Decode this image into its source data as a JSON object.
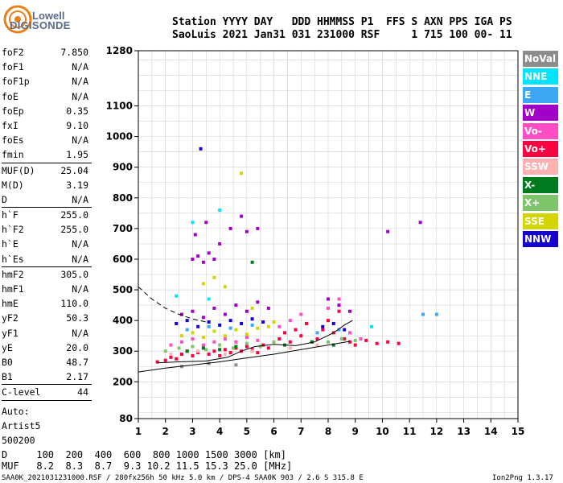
{
  "logo": {
    "line1": "Lowell",
    "line2": "DIGISONDE"
  },
  "header": {
    "line1": "Station YYYY DAY   DDD HHMMSS P1  FFS S AXN PPS IGA PS",
    "line2": "SaoLuis 2021 Jan31 031 231000 RSF     1 715 100 00- 11"
  },
  "params": [
    {
      "group": [
        {
          "k": "foF2",
          "v": "7.850"
        },
        {
          "k": "foF1",
          "v": "N/A"
        },
        {
          "k": "foF1p",
          "v": "N/A"
        },
        {
          "k": "foE",
          "v": "N/A"
        },
        {
          "k": "foEp",
          "v": "0.35"
        },
        {
          "k": "fxI",
          "v": "9.10"
        },
        {
          "k": "foEs",
          "v": "N/A"
        },
        {
          "k": "fmin",
          "v": "1.95"
        }
      ]
    },
    {
      "group": [
        {
          "k": "MUF(D)",
          "v": "25.04"
        },
        {
          "k": "M(D)",
          "v": "3.19"
        },
        {
          "k": "D",
          "v": "N/A"
        }
      ]
    },
    {
      "group": [
        {
          "k": "h`F",
          "v": "255.0"
        },
        {
          "k": "h`F2",
          "v": "255.0"
        },
        {
          "k": "h`E",
          "v": "N/A"
        },
        {
          "k": "h`Es",
          "v": "N/A"
        }
      ]
    },
    {
      "group": [
        {
          "k": "hmF2",
          "v": "305.0"
        },
        {
          "k": "hmF1",
          "v": "N/A"
        },
        {
          "k": "hmE",
          "v": "110.0"
        },
        {
          "k": "yF2",
          "v": "50.3"
        },
        {
          "k": "yF1",
          "v": "N/A"
        },
        {
          "k": "yE",
          "v": "20.0"
        },
        {
          "k": "B0",
          "v": "48.7"
        },
        {
          "k": "B1",
          "v": "2.17"
        }
      ]
    },
    {
      "group": [
        {
          "k": "C-level",
          "v": "44"
        }
      ]
    }
  ],
  "auto": {
    "line1": "Auto:",
    "line2": "Artist5",
    "line3": "500200"
  },
  "legend": [
    {
      "label": "NoVal",
      "bg": "#8c8c8c",
      "fg": "#ffffff"
    },
    {
      "label": "NNE",
      "bg": "#00e5ff",
      "fg": "#ffffff"
    },
    {
      "label": "E",
      "bg": "#3ba7f5",
      "fg": "#ffffff"
    },
    {
      "label": "W",
      "bg": "#a000c8",
      "fg": "#ffffff"
    },
    {
      "label": "Vo-",
      "bg": "#ff4dc4",
      "fg": "#ffffff"
    },
    {
      "label": "Vo+",
      "bg": "#ff0040",
      "fg": "#ffffff"
    },
    {
      "label": "SSW",
      "bg": "#ffb0b0",
      "fg": "#ffffff"
    },
    {
      "label": "X-",
      "bg": "#007a1e",
      "fg": "#ffffff"
    },
    {
      "label": "X+",
      "bg": "#7ec46a",
      "fg": "#ffffff"
    },
    {
      "label": "SSE",
      "bg": "#d4d400",
      "fg": "#ffffff"
    },
    {
      "label": "NNW",
      "bg": "#1400d2",
      "fg": "#ffffff"
    }
  ],
  "footer": {
    "line1": "D     100  200  400  600  800 1000 1500 3000 [km]",
    "line2": "MUF   8.2  8.3  8.7  9.3 10.2 11.5 15.3 25.0 [MHz]",
    "bottom_left": "SAA0K_2021031231000.RSF / 280fx256h 50 kHz 5.0 km / DPS-4 SAA0K 903 / 2.6 S 315.8 E",
    "bottom_right": "Ion2Png 1.3.17"
  },
  "chart_data": {
    "type": "scatter",
    "title": "",
    "xlabel": "",
    "ylabel": "",
    "xlim": [
      1,
      15
    ],
    "ylim": [
      80,
      1280
    ],
    "x_ticks": [
      1,
      2,
      3,
      4,
      5,
      6,
      7,
      8,
      9,
      10,
      11,
      12,
      13,
      14,
      15
    ],
    "y_ticks": [
      80,
      200,
      300,
      400,
      500,
      600,
      700,
      800,
      900,
      1000,
      1100,
      1280
    ],
    "grid": true,
    "legend_placement": "right",
    "series": [
      {
        "color": "#ff0040",
        "points": [
          [
            1.7,
            265
          ],
          [
            2.0,
            270
          ],
          [
            2.2,
            280
          ],
          [
            2.4,
            275
          ],
          [
            2.6,
            290
          ],
          [
            2.8,
            300
          ],
          [
            3.0,
            285
          ],
          [
            3.2,
            295
          ],
          [
            3.4,
            310
          ],
          [
            3.6,
            290
          ],
          [
            3.8,
            300
          ],
          [
            4.0,
            285
          ],
          [
            4.2,
            305
          ],
          [
            4.4,
            295
          ],
          [
            4.6,
            310
          ],
          [
            4.8,
            300
          ],
          [
            5.0,
            315
          ],
          [
            5.2,
            305
          ],
          [
            5.4,
            295
          ],
          [
            5.6,
            320
          ],
          [
            5.8,
            310
          ],
          [
            6.2,
            340
          ],
          [
            6.4,
            360
          ],
          [
            6.6,
            330
          ],
          [
            6.8,
            370
          ],
          [
            7.0,
            350
          ],
          [
            7.2,
            390
          ],
          [
            7.6,
            340
          ],
          [
            7.8,
            370
          ],
          [
            8.0,
            400
          ],
          [
            8.2,
            360
          ],
          [
            8.4,
            430
          ],
          [
            8.6,
            340
          ],
          [
            8.8,
            330
          ],
          [
            9.0,
            320
          ],
          [
            9.4,
            335
          ],
          [
            9.8,
            325
          ],
          [
            10.2,
            330
          ],
          [
            10.6,
            325
          ]
        ]
      },
      {
        "color": "#ff4dc4",
        "points": [
          [
            2.2,
            320
          ],
          [
            2.6,
            330
          ],
          [
            3.0,
            340
          ],
          [
            3.4,
            320
          ],
          [
            3.8,
            330
          ],
          [
            4.2,
            340
          ],
          [
            4.6,
            330
          ],
          [
            5.0,
            345
          ],
          [
            5.4,
            335
          ],
          [
            6.2,
            380
          ],
          [
            6.6,
            400
          ],
          [
            7.0,
            420
          ],
          [
            7.4,
            330
          ],
          [
            8.0,
            440
          ],
          [
            8.4,
            470
          ],
          [
            8.8,
            360
          ],
          [
            9.2,
            340
          ]
        ]
      },
      {
        "color": "#a000c8",
        "points": [
          [
            3.0,
            600
          ],
          [
            3.2,
            610
          ],
          [
            3.4,
            590
          ],
          [
            3.6,
            620
          ],
          [
            3.8,
            600
          ],
          [
            3.1,
            680
          ],
          [
            3.5,
            720
          ],
          [
            4.0,
            650
          ],
          [
            4.4,
            700
          ],
          [
            4.8,
            740
          ],
          [
            5.0,
            690
          ],
          [
            5.4,
            700
          ],
          [
            2.6,
            420
          ],
          [
            3.0,
            430
          ],
          [
            3.4,
            410
          ],
          [
            3.8,
            440
          ],
          [
            4.2,
            420
          ],
          [
            4.6,
            450
          ],
          [
            5.0,
            430
          ],
          [
            5.4,
            460
          ],
          [
            5.8,
            440
          ],
          [
            8.0,
            470
          ],
          [
            8.4,
            450
          ],
          [
            8.8,
            430
          ],
          [
            10.2,
            690
          ],
          [
            11.4,
            720
          ]
        ]
      },
      {
        "color": "#1400d2",
        "points": [
          [
            2.4,
            390
          ],
          [
            2.8,
            400
          ],
          [
            3.2,
            380
          ],
          [
            3.6,
            395
          ],
          [
            4.0,
            385
          ],
          [
            4.4,
            400
          ],
          [
            4.8,
            390
          ],
          [
            5.2,
            405
          ],
          [
            5.6,
            395
          ],
          [
            7.8,
            380
          ],
          [
            8.2,
            390
          ],
          [
            8.6,
            370
          ],
          [
            3.3,
            960
          ]
        ]
      },
      {
        "color": "#d4d400",
        "points": [
          [
            2.6,
            350
          ],
          [
            3.0,
            360
          ],
          [
            3.4,
            345
          ],
          [
            3.8,
            365
          ],
          [
            4.2,
            350
          ],
          [
            4.6,
            370
          ],
          [
            5.0,
            355
          ],
          [
            5.4,
            375
          ],
          [
            5.8,
            380
          ],
          [
            6.0,
            395
          ],
          [
            3.4,
            520
          ],
          [
            3.8,
            540
          ],
          [
            4.2,
            510
          ],
          [
            4.8,
            880
          ],
          [
            5.2,
            440
          ]
        ]
      },
      {
        "color": "#7ec46a",
        "points": [
          [
            2.0,
            300
          ],
          [
            2.5,
            310
          ],
          [
            3.0,
            315
          ],
          [
            3.5,
            305
          ],
          [
            4.0,
            320
          ],
          [
            4.5,
            310
          ],
          [
            5.0,
            325
          ],
          [
            5.5,
            315
          ],
          [
            6.0,
            330
          ],
          [
            8.0,
            330
          ],
          [
            8.5,
            340
          ],
          [
            9.0,
            335
          ]
        ]
      },
      {
        "color": "#007a1e",
        "points": [
          [
            2.8,
            300
          ],
          [
            3.4,
            310
          ],
          [
            4.0,
            305
          ],
          [
            4.6,
            315
          ],
          [
            5.2,
            300
          ],
          [
            6.4,
            320
          ],
          [
            7.4,
            330
          ],
          [
            8.2,
            320
          ],
          [
            5.2,
            590
          ]
        ]
      },
      {
        "color": "#3ba7f5",
        "points": [
          [
            2.8,
            370
          ],
          [
            3.6,
            380
          ],
          [
            4.4,
            375
          ],
          [
            5.2,
            385
          ],
          [
            7.6,
            360
          ],
          [
            8.4,
            370
          ],
          [
            11.5,
            420
          ],
          [
            12.0,
            420
          ]
        ]
      },
      {
        "color": "#00e5ff",
        "points": [
          [
            3.0,
            720
          ],
          [
            4.0,
            760
          ],
          [
            2.4,
            480
          ],
          [
            3.6,
            470
          ],
          [
            9.6,
            380
          ]
        ]
      },
      {
        "color": "#ffb0b0",
        "points": [
          [
            2.2,
            290
          ],
          [
            3.2,
            300
          ],
          [
            4.2,
            290
          ],
          [
            5.2,
            300
          ],
          [
            6.6,
            310
          ],
          [
            7.6,
            320
          ]
        ]
      },
      {
        "color": "#8c8c8c",
        "points": [
          [
            2.6,
            250
          ],
          [
            3.6,
            260
          ],
          [
            4.6,
            255
          ]
        ]
      }
    ],
    "trace_curves": [
      {
        "style": "solid",
        "points": [
          [
            1,
            232
          ],
          [
            2,
            245
          ],
          [
            3,
            255
          ],
          [
            4,
            265
          ],
          [
            5,
            278
          ],
          [
            6,
            290
          ],
          [
            7,
            305
          ],
          [
            8,
            320
          ],
          [
            8.8,
            332
          ]
        ]
      },
      {
        "style": "solid",
        "points": [
          [
            1.7,
            262
          ],
          [
            2.5,
            265
          ],
          [
            3.5,
            268
          ],
          [
            4.3,
            280
          ],
          [
            4.8,
            300
          ],
          [
            5.3,
            315
          ],
          [
            6,
            322
          ],
          [
            6.8,
            318
          ],
          [
            7.5,
            330
          ],
          [
            8.2,
            360
          ],
          [
            8.6,
            385
          ],
          [
            8.9,
            400
          ]
        ]
      },
      {
        "style": "dashed",
        "points": [
          [
            1,
            510
          ],
          [
            1.5,
            470
          ],
          [
            2,
            440
          ],
          [
            2.5,
            420
          ],
          [
            3,
            405
          ],
          [
            3.5,
            395
          ]
        ]
      }
    ]
  }
}
